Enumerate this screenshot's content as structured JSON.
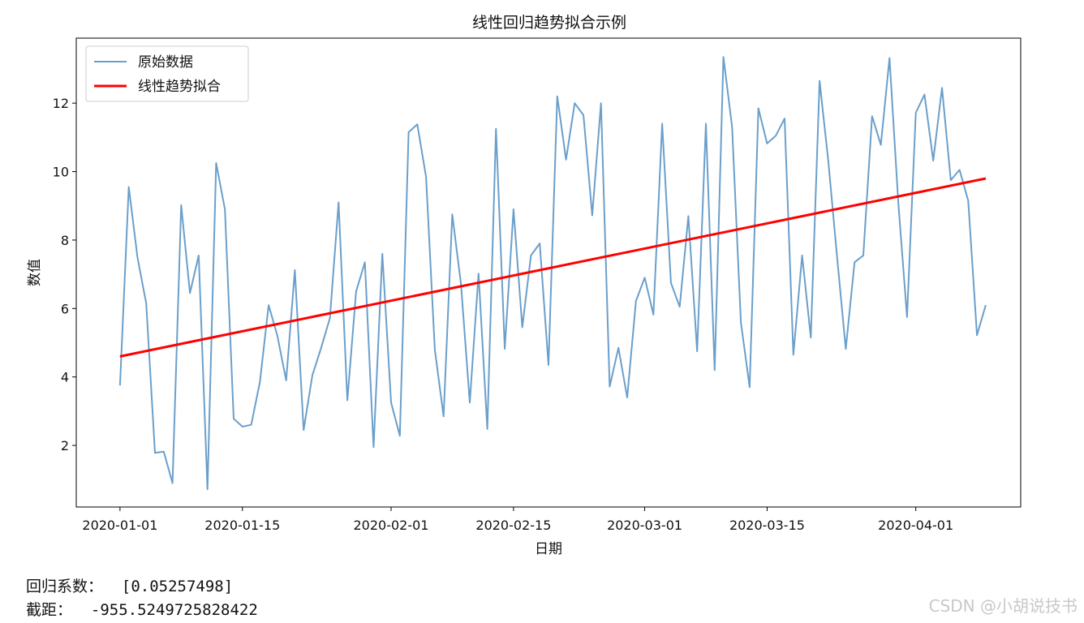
{
  "chart_data": {
    "type": "line",
    "title": "线性回归趋势拟合示例",
    "xlabel": "日期",
    "ylabel": "数值",
    "x_start": "2020-01-01",
    "x_end": "2020-04-09",
    "xlim": [
      "2019-12-27",
      "2020-04-13"
    ],
    "ylim": [
      0.2,
      13.9
    ],
    "x_ticks": [
      {
        "date": "2020-01-01",
        "label": "2020-01-01"
      },
      {
        "date": "2020-01-15",
        "label": "2020-01-15"
      },
      {
        "date": "2020-02-01",
        "label": "2020-02-01"
      },
      {
        "date": "2020-02-15",
        "label": "2020-02-15"
      },
      {
        "date": "2020-03-01",
        "label": "2020-03-01"
      },
      {
        "date": "2020-03-15",
        "label": "2020-03-15"
      },
      {
        "date": "2020-04-01",
        "label": "2020-04-01"
      }
    ],
    "y_ticks": [
      2,
      4,
      6,
      8,
      10,
      12
    ],
    "grid": false,
    "legend": "upper-left",
    "series": [
      {
        "name": "原始数据",
        "color": "#6a9fcb",
        "values": [
          3.75,
          9.55,
          7.5,
          6.15,
          1.78,
          1.82,
          0.9,
          9.02,
          6.45,
          7.55,
          0.72,
          10.25,
          8.9,
          2.78,
          2.55,
          2.6,
          3.85,
          6.1,
          5.2,
          3.9,
          7.12,
          2.45,
          4.05,
          4.85,
          5.72,
          9.1,
          3.32,
          6.5,
          7.35,
          1.95,
          7.6,
          3.25,
          2.28,
          11.15,
          11.38,
          9.85,
          4.8,
          2.85,
          8.75,
          6.7,
          3.25,
          7.02,
          2.48,
          11.25,
          4.82,
          8.9,
          5.45,
          7.55,
          7.9,
          4.35,
          12.2,
          10.35,
          12.0,
          11.65,
          8.72,
          12.0,
          3.72,
          4.85,
          3.4,
          6.22,
          6.9,
          5.82,
          11.4,
          6.75,
          6.05,
          8.7,
          4.75,
          11.4,
          4.2,
          13.35,
          11.3,
          5.6,
          3.7,
          11.85,
          10.82,
          11.05,
          11.55,
          4.65,
          7.55,
          5.15,
          12.65,
          10.3,
          7.5,
          4.82,
          7.35,
          7.55,
          11.62,
          10.78,
          13.32,
          9.1,
          5.75,
          11.72,
          12.25,
          10.32,
          12.45,
          9.75,
          10.05,
          9.15,
          5.22,
          6.1
        ]
      },
      {
        "name": "线性趋势拟合",
        "color": "#ff0000",
        "values_endpoints": [
          4.6,
          9.8
        ]
      }
    ]
  },
  "output": {
    "coef_line": "回归系数：  [0.05257498]",
    "intercept_line": "截距：  -955.5249725828422"
  },
  "watermark": "CSDN @小胡说技书"
}
